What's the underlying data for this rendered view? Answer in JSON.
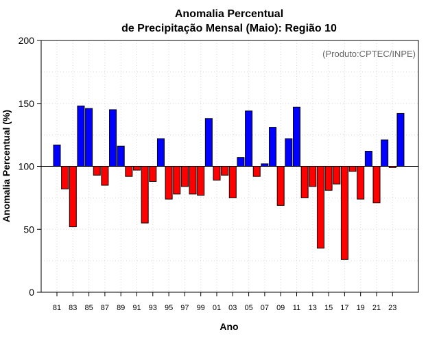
{
  "chart_data": {
    "type": "bar",
    "title": [
      "Anomalia Percentual",
      "de Precipitação Mensal (Maio): Região 10"
    ],
    "xlabel": "Ano",
    "ylabel": "Anomalia Percentual (%)",
    "credit": "(Produto:CPTEC/INPE)",
    "baseline": 100,
    "ylim": [
      0,
      200
    ],
    "yticks": [
      0,
      50,
      100,
      150,
      200
    ],
    "years": [
      1981,
      1982,
      1983,
      1984,
      1985,
      1986,
      1987,
      1988,
      1989,
      1990,
      1991,
      1992,
      1993,
      1994,
      1995,
      1996,
      1997,
      1998,
      1999,
      2000,
      2001,
      2002,
      2003,
      2004,
      2005,
      2006,
      2007,
      2008,
      2009,
      2010,
      2011,
      2012,
      2013,
      2014,
      2015,
      2016,
      2017,
      2018,
      2019,
      2020,
      2021,
      2022,
      2023,
      2024
    ],
    "values": [
      117,
      82,
      52,
      148,
      146,
      93,
      85,
      145,
      116,
      92,
      97,
      55,
      88,
      122,
      74,
      78,
      84,
      78,
      77,
      138,
      89,
      93,
      75,
      107,
      144,
      92,
      102,
      131,
      69,
      122,
      147,
      75,
      84,
      35,
      81,
      86,
      26,
      96,
      74,
      112,
      71,
      121,
      99,
      142
    ],
    "xtick_labels": [
      "81",
      "83",
      "85",
      "87",
      "89",
      "91",
      "93",
      "95",
      "97",
      "99",
      "01",
      "03",
      "05",
      "07",
      "09",
      "11",
      "13",
      "15",
      "17",
      "19",
      "21",
      "23"
    ],
    "colors": {
      "above": "#0000ff",
      "below": "#ff0000",
      "grid": "#d8d8d8"
    }
  }
}
